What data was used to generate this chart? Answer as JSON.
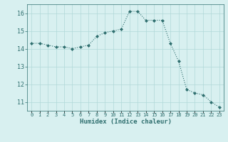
{
  "x": [
    0,
    1,
    2,
    3,
    4,
    5,
    6,
    7,
    8,
    9,
    10,
    11,
    12,
    13,
    14,
    15,
    16,
    17,
    18,
    19,
    20,
    21,
    22,
    23
  ],
  "y": [
    14.3,
    14.3,
    14.2,
    14.1,
    14.1,
    14.0,
    14.1,
    14.2,
    14.7,
    14.9,
    15.0,
    15.1,
    16.1,
    16.1,
    15.6,
    15.6,
    15.6,
    14.3,
    13.3,
    11.7,
    11.5,
    11.4,
    11.0,
    10.7
  ],
  "xlabel": "Humidex (Indice chaleur)",
  "ylim": [
    10.5,
    16.5
  ],
  "xlim": [
    -0.5,
    23.5
  ],
  "yticks": [
    11,
    12,
    13,
    14,
    15,
    16
  ],
  "xtick_labels": [
    "0",
    "1",
    "2",
    "3",
    "4",
    "5",
    "6",
    "7",
    "8",
    "9",
    "10",
    "11",
    "12",
    "13",
    "14",
    "15",
    "16",
    "17",
    "18",
    "19",
    "20",
    "21",
    "22",
    "23"
  ],
  "line_color": "#2e6e6e",
  "marker_color": "#2e6e6e",
  "bg_color": "#d8f0f0",
  "grid_color": "#b0d8d8",
  "tick_color": "#2e6e6e",
  "spine_color": "#2e6e6e"
}
